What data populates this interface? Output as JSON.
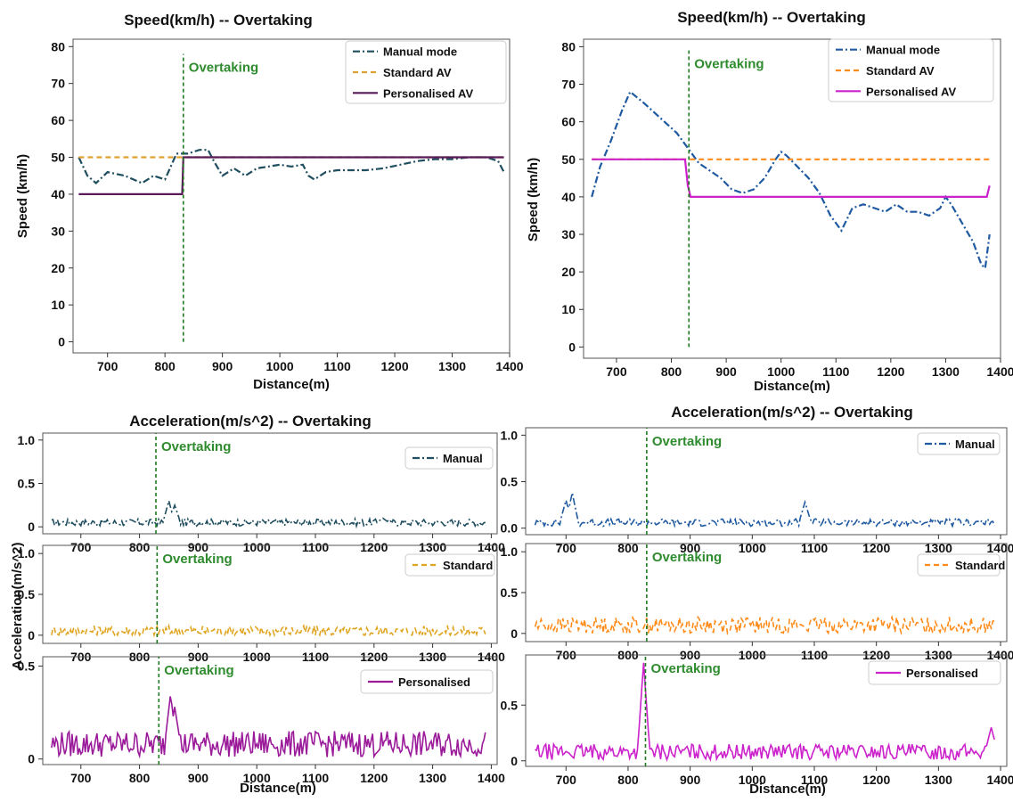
{
  "chart_data": [
    {
      "id": "tl",
      "type": "line",
      "title": "Speed(km/h) -- Overtaking",
      "xlabel": "Distance(m)",
      "ylabel": "Speed (km/h)",
      "xlim": [
        640,
        1400
      ],
      "ylim": [
        -3,
        82
      ],
      "xticks": [
        700,
        800,
        900,
        1000,
        1100,
        1200,
        1300,
        1400
      ],
      "yticks": [
        0,
        10,
        20,
        30,
        40,
        50,
        60,
        70,
        80
      ],
      "annotation": {
        "label": "Overtaking",
        "x": 832,
        "ymin": 0,
        "ymax": 78
      },
      "legend_position": "top-right",
      "series": [
        {
          "name": "Manual mode",
          "style": "dashdot",
          "color": "#1f4e5f",
          "x": [
            650,
            665,
            680,
            700,
            730,
            760,
            780,
            800,
            820,
            840,
            860,
            875,
            885,
            900,
            910,
            920,
            940,
            960,
            980,
            1000,
            1020,
            1040,
            1050,
            1060,
            1080,
            1100,
            1120,
            1150,
            1180,
            1210,
            1240,
            1270,
            1300,
            1330,
            1360,
            1380,
            1390
          ],
          "y": [
            50,
            45,
            43,
            46,
            45,
            43,
            45,
            44,
            51,
            51,
            52,
            52,
            49,
            45,
            46,
            47,
            45,
            47,
            47.5,
            48,
            47.5,
            48,
            45,
            44,
            46,
            46.5,
            46.5,
            46.5,
            47,
            48,
            49,
            49.5,
            49.5,
            50,
            50,
            49,
            46
          ]
        },
        {
          "name": "Standard AV",
          "style": "dashed",
          "color": "#e0a030",
          "x": [
            650,
            1390
          ],
          "y": [
            50,
            50
          ]
        },
        {
          "name": "Personalised AV",
          "style": "solid",
          "color": "#5a1a5a",
          "x": [
            650,
            830,
            832,
            1390
          ],
          "y": [
            40,
            40,
            50,
            50
          ]
        }
      ]
    },
    {
      "id": "tr",
      "type": "line",
      "title": "Speed(km/h) -- Overtaking",
      "xlabel": "Distance(m)",
      "ylabel": "Speed (km/h)",
      "xlim": [
        640,
        1400
      ],
      "ylim": [
        -3,
        82
      ],
      "xticks": [
        700,
        800,
        900,
        1000,
        1100,
        1200,
        1300,
        1400
      ],
      "yticks": [
        0,
        10,
        20,
        30,
        40,
        50,
        60,
        70,
        80
      ],
      "annotation": {
        "label": "Overtaking",
        "x": 832,
        "ymin": 0,
        "ymax": 79
      },
      "legend_position": "top-right",
      "series": [
        {
          "name": "Manual mode",
          "style": "dashdot",
          "color": "#1f5aa0",
          "x": [
            655,
            670,
            690,
            710,
            725,
            750,
            780,
            810,
            830,
            850,
            870,
            890,
            910,
            930,
            950,
            970,
            990,
            1000,
            1010,
            1030,
            1050,
            1070,
            1090,
            1100,
            1110,
            1130,
            1150,
            1170,
            1190,
            1210,
            1230,
            1250,
            1270,
            1290,
            1300,
            1310,
            1330,
            1350,
            1365,
            1372,
            1380
          ],
          "y": [
            40,
            48,
            55,
            63,
            68,
            65,
            61,
            57,
            53,
            49,
            47,
            45,
            42,
            41,
            42,
            45,
            50,
            52,
            51,
            48,
            45,
            41,
            35,
            33,
            31,
            37,
            38,
            37,
            36,
            38,
            36,
            36,
            35,
            37,
            40,
            38,
            33,
            28,
            22,
            21,
            30
          ]
        },
        {
          "name": "Standard AV",
          "style": "dashed",
          "color": "#ff8c1a",
          "x": [
            655,
            1380
          ],
          "y": [
            50,
            50
          ]
        },
        {
          "name": "Personalised AV",
          "style": "solid",
          "color": "#cc22cc",
          "x": [
            655,
            825,
            830,
            835,
            1375,
            1380
          ],
          "y": [
            50,
            50,
            43,
            40,
            40,
            43
          ]
        }
      ]
    },
    {
      "id": "bl",
      "type": "line",
      "title": "Acceleration(m/s^2) -- Overtaking",
      "xlabel": "Distance(m)",
      "ylabel": "Acceleration(m/s^2)",
      "panels": [
        {
          "name": "Manual",
          "style": "dashdot",
          "color": "#1f4e5f",
          "xlim": [
            635,
            1410
          ],
          "ylim": [
            -0.08,
            1.08
          ],
          "yticks": [
            0,
            0.5,
            1.0
          ],
          "ytick_labels": [
            "0",
            "0.5",
            "1.0"
          ],
          "xticks": [
            700,
            800,
            900,
            1000,
            1100,
            1200,
            1300,
            1400
          ],
          "annotation": {
            "label": "Overtaking",
            "x": 828
          },
          "profile": {
            "base": 0.05,
            "noise": 0.04,
            "peaks": [
              [
                850,
                0.3
              ],
              [
                860,
                0.25
              ],
              [
                1215,
                0.1
              ]
            ]
          }
        },
        {
          "name": "Standard",
          "style": "dashed",
          "color": "#e0a520",
          "xlim": [
            635,
            1410
          ],
          "ylim": [
            -0.1,
            1.1
          ],
          "yticks": [
            0,
            0.5,
            1.0
          ],
          "ytick_labels": [
            "0",
            "0.5",
            "1.0"
          ],
          "xticks": [
            700,
            800,
            900,
            1000,
            1100,
            1200,
            1300,
            1400
          ],
          "annotation": {
            "label": "Overtaking",
            "x": 830
          },
          "profile": {
            "base": 0.05,
            "noise": 0.07,
            "peaks": []
          }
        },
        {
          "name": "Personalised",
          "style": "solid",
          "color": "#9a1a9a",
          "xlim": [
            635,
            1410
          ],
          "ylim": [
            -0.03,
            0.55
          ],
          "yticks": [
            0,
            0.5
          ],
          "ytick_labels": [
            "0",
            "0.5"
          ],
          "xticks": [
            700,
            800,
            900,
            1000,
            1100,
            1200,
            1300,
            1400
          ],
          "annotation": {
            "label": "Overtaking",
            "x": 833
          },
          "profile": {
            "base": 0.08,
            "noise": 0.07,
            "peaks": [
              [
                853,
                0.35
              ],
              [
                860,
                0.28
              ]
            ]
          }
        }
      ]
    },
    {
      "id": "br",
      "type": "line",
      "title": "Acceleration(m/s^2) -- Overtaking",
      "xlabel": "Distance(m)",
      "ylabel": "",
      "panels": [
        {
          "name": "Manual",
          "style": "dashdot",
          "color": "#1f5aa0",
          "xlim": [
            635,
            1410
          ],
          "ylim": [
            -0.07,
            1.08
          ],
          "yticks": [
            0,
            0.5,
            1.0
          ],
          "ytick_labels": [
            "0.0",
            "0.5",
            "1.0"
          ],
          "xticks": [
            700,
            800,
            900,
            1000,
            1100,
            1200,
            1300,
            1400
          ],
          "annotation": {
            "label": "Overtaking",
            "x": 830
          },
          "profile": {
            "base": 0.06,
            "noise": 0.04,
            "peaks": [
              [
                700,
                0.3
              ],
              [
                710,
                0.38
              ],
              [
                1085,
                0.28
              ]
            ]
          }
        },
        {
          "name": "Standard",
          "style": "dashed",
          "color": "#ff8c1a",
          "xlim": [
            635,
            1410
          ],
          "ylim": [
            -0.1,
            1.1
          ],
          "yticks": [
            0,
            0.5,
            1.0
          ],
          "ytick_labels": [
            "0",
            "0.5",
            "1.0"
          ],
          "xticks": [
            700,
            800,
            900,
            1000,
            1100,
            1200,
            1300,
            1400
          ],
          "annotation": {
            "label": "Overtaking",
            "x": 830
          },
          "profile": {
            "base": 0.1,
            "noise": 0.1,
            "peaks": []
          }
        },
        {
          "name": "Personalised",
          "style": "solid",
          "color": "#cc22cc",
          "xlim": [
            635,
            1410
          ],
          "ylim": [
            -0.05,
            0.95
          ],
          "yticks": [
            0,
            0.5
          ],
          "ytick_labels": [
            "0",
            "0.5"
          ],
          "xticks": [
            700,
            800,
            900,
            1000,
            1100,
            1200,
            1300,
            1400
          ],
          "annotation": {
            "label": "Overtaking",
            "x": 828
          },
          "profile": {
            "base": 0.08,
            "noise": 0.07,
            "peaks": [
              [
                825,
                0.88
              ],
              [
                1385,
                0.3
              ]
            ]
          }
        }
      ]
    }
  ]
}
